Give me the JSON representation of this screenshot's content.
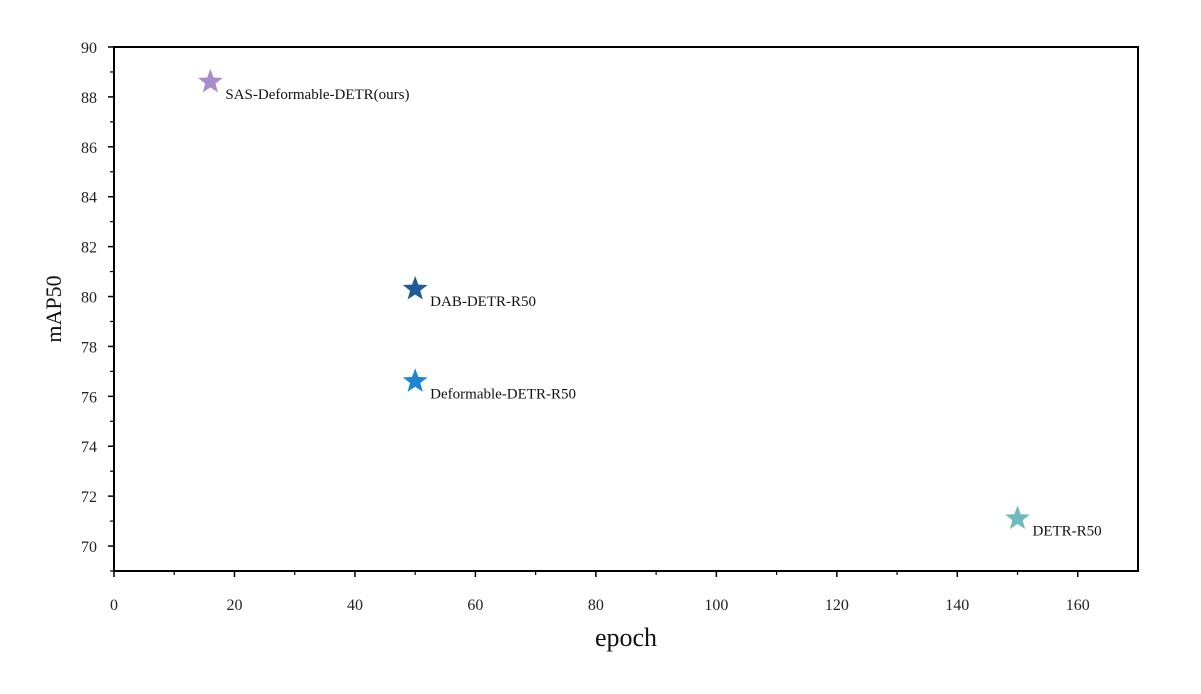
{
  "chart_data": {
    "type": "scatter",
    "title": "",
    "xlabel": "epoch",
    "ylabel": "mAP50",
    "xlim": [
      0,
      170
    ],
    "ylim": [
      69,
      90
    ],
    "x_ticks": [
      0,
      20,
      40,
      60,
      80,
      100,
      120,
      140,
      160
    ],
    "y_ticks": [
      70,
      72,
      74,
      76,
      78,
      80,
      82,
      84,
      86,
      88,
      90
    ],
    "grid": false,
    "marker": "star",
    "points": [
      {
        "label": "SAS-Deformable-DETR(ours)",
        "x": 16,
        "y": 88.6,
        "color": "#a98ccd"
      },
      {
        "label": "DAB-DETR-R50",
        "x": 50,
        "y": 80.3,
        "color": "#1f5b96"
      },
      {
        "label": "Deformable-DETR-R50",
        "x": 50,
        "y": 76.6,
        "color": "#1a86d4"
      },
      {
        "label": "DETR-R50",
        "x": 150,
        "y": 71.1,
        "color": "#6fb9bf"
      }
    ]
  }
}
